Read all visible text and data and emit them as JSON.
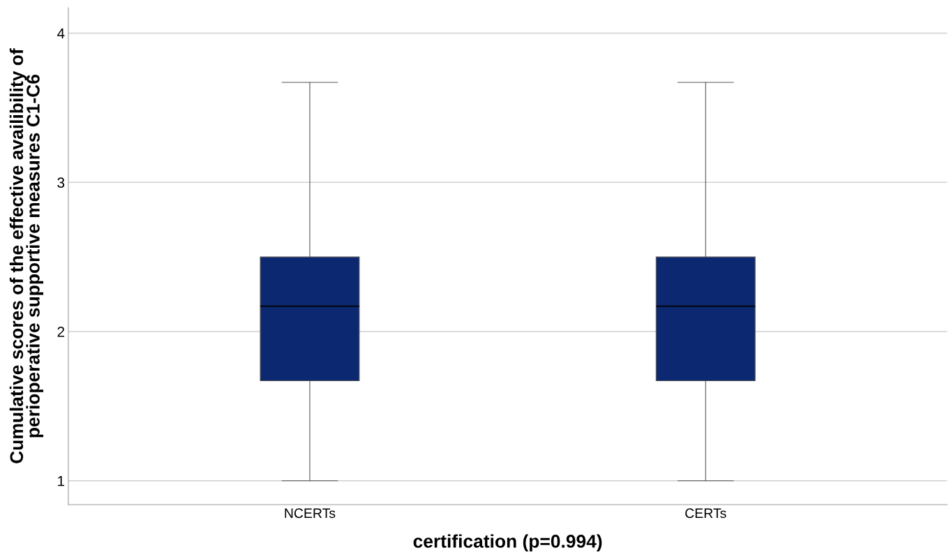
{
  "chart_data": {
    "type": "box",
    "xlabel": "certification (p=0.994)",
    "ylabel": "Cumulative scores of the effective availibility of\nperioperative supportive measures C1-C6",
    "categories": [
      "NCERTs",
      "CERTs"
    ],
    "boxes": [
      {
        "low": 1,
        "q1": 1.67,
        "median": 2.17,
        "q3": 2.5,
        "high": 3.67
      },
      {
        "low": 1,
        "q1": 1.67,
        "median": 2.17,
        "q3": 2.5,
        "high": 3.67
      }
    ],
    "color": "#0b2870",
    "ylim": [
      0.84,
      4.17
    ],
    "yticks": [
      1,
      2,
      3,
      4
    ],
    "grid": "y"
  }
}
